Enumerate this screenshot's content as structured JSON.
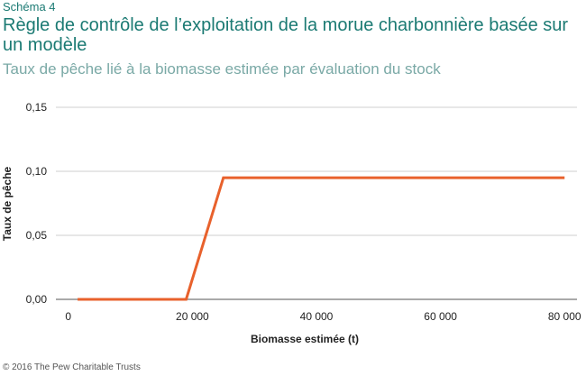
{
  "figure_label": "Schéma 4",
  "title": "Règle de contrôle de l’exploitation de la morue charbonnière basée sur un modèle",
  "subtitle": "Taux de pêche lié à la biomasse estimée par évaluation du stock",
  "footer": "© 2016 The Pew Charitable Trusts",
  "colors": {
    "line": "#e8612c",
    "grid": "#cfcfcf",
    "axis": "#555555"
  },
  "chart_data": {
    "type": "line",
    "xlabel": "Biomasse estimée (t)",
    "ylabel": "Taux de pêche",
    "xlim": [
      -2000,
      82000
    ],
    "ylim": [
      0,
      0.15
    ],
    "x_ticks": [
      0,
      20000,
      40000,
      60000,
      80000
    ],
    "x_tick_labels": [
      "0",
      "20 000",
      "40 000",
      "60 000",
      "80 000"
    ],
    "y_ticks": [
      0,
      0.05,
      0.1,
      0.15
    ],
    "y_tick_labels": [
      "0,00",
      "0,05",
      "0,10",
      "0,15"
    ],
    "grid": "horizontal",
    "series": [
      {
        "x": [
          1500,
          19000,
          25000,
          80000
        ],
        "y": [
          0,
          0,
          0.095,
          0.095
        ]
      }
    ]
  }
}
